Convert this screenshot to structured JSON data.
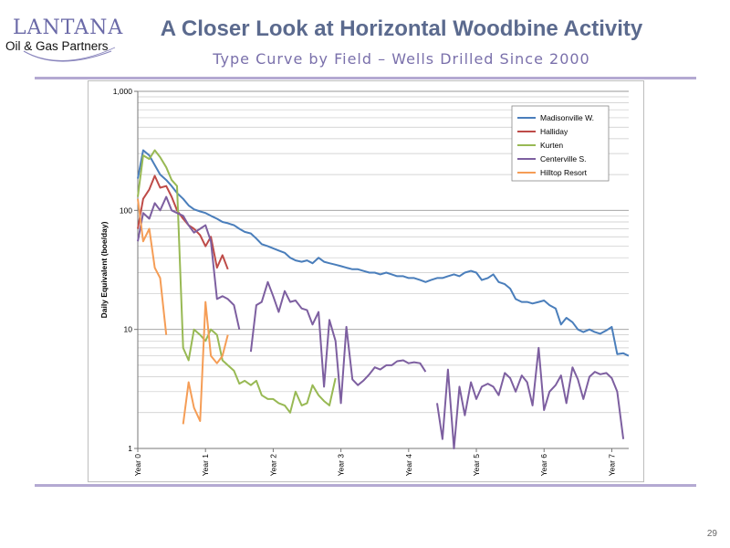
{
  "logo": {
    "name": "LANTANA",
    "tagline": "Oil & Gas Partners"
  },
  "title": "A Closer Look at Horizontal Woodbine Activity",
  "subtitle": "Type Curve by Field – Wells Drilled Since 2000",
  "page_number": "29",
  "colors": {
    "title": "#5b6a8e",
    "subtitle": "#7a70ab",
    "rule": "#b4a9d2"
  },
  "chart_data": {
    "type": "line",
    "title": "",
    "xlabel": "",
    "ylabel": "Daily Equivalent (boe/day)",
    "y_scale": "log",
    "ylim": [
      1,
      1000
    ],
    "xlim": [
      0,
      7.25
    ],
    "y_ticks": [
      {
        "value": 1,
        "label": "1"
      },
      {
        "value": 10,
        "label": "10"
      },
      {
        "value": 100,
        "label": "100"
      },
      {
        "value": 1000,
        "label": "1,000"
      }
    ],
    "x_ticks": [
      {
        "value": 0,
        "label": "Year 0"
      },
      {
        "value": 1,
        "label": "Year 1"
      },
      {
        "value": 2,
        "label": "Year 2"
      },
      {
        "value": 3,
        "label": "Year 3"
      },
      {
        "value": 4,
        "label": "Year 4"
      },
      {
        "value": 5,
        "label": "Year 5"
      },
      {
        "value": 6,
        "label": "Year 6"
      },
      {
        "value": 7,
        "label": "Year 7"
      }
    ],
    "grid": "horizontal",
    "legend_position": "top-right",
    "series": [
      {
        "name": "Madisonville W.",
        "color": "#4a7ebb",
        "points": [
          [
            0,
            185
          ],
          [
            0.08,
            320
          ],
          [
            0.17,
            290
          ],
          [
            0.25,
            240
          ],
          [
            0.33,
            200
          ],
          [
            0.42,
            180
          ],
          [
            0.5,
            160
          ],
          [
            0.58,
            140
          ],
          [
            0.67,
            125
          ],
          [
            0.75,
            110
          ],
          [
            0.83,
            102
          ],
          [
            0.92,
            98
          ],
          [
            1.0,
            95
          ],
          [
            1.08,
            90
          ],
          [
            1.17,
            85
          ],
          [
            1.25,
            80
          ],
          [
            1.33,
            78
          ],
          [
            1.42,
            75
          ],
          [
            1.5,
            70
          ],
          [
            1.58,
            66
          ],
          [
            1.67,
            64
          ],
          [
            1.75,
            58
          ],
          [
            1.83,
            52
          ],
          [
            1.92,
            50
          ],
          [
            2.0,
            48
          ],
          [
            2.08,
            46
          ],
          [
            2.17,
            44
          ],
          [
            2.25,
            40
          ],
          [
            2.33,
            38
          ],
          [
            2.42,
            37
          ],
          [
            2.5,
            38
          ],
          [
            2.58,
            36
          ],
          [
            2.67,
            40
          ],
          [
            2.75,
            37
          ],
          [
            2.83,
            36
          ],
          [
            2.92,
            35
          ],
          [
            3.0,
            34
          ],
          [
            3.08,
            33
          ],
          [
            3.17,
            32
          ],
          [
            3.25,
            32
          ],
          [
            3.33,
            31
          ],
          [
            3.42,
            30
          ],
          [
            3.5,
            30
          ],
          [
            3.58,
            29
          ],
          [
            3.67,
            30
          ],
          [
            3.75,
            29
          ],
          [
            3.83,
            28
          ],
          [
            3.92,
            28
          ],
          [
            4.0,
            27
          ],
          [
            4.08,
            27
          ],
          [
            4.17,
            26
          ],
          [
            4.25,
            25
          ],
          [
            4.33,
            26
          ],
          [
            4.42,
            27
          ],
          [
            4.5,
            27
          ],
          [
            4.58,
            28
          ],
          [
            4.67,
            29
          ],
          [
            4.75,
            28
          ],
          [
            4.83,
            30
          ],
          [
            4.92,
            31
          ],
          [
            5.0,
            30
          ],
          [
            5.08,
            26
          ],
          [
            5.17,
            27
          ],
          [
            5.25,
            29
          ],
          [
            5.33,
            25
          ],
          [
            5.42,
            24
          ],
          [
            5.5,
            22
          ],
          [
            5.58,
            18
          ],
          [
            5.67,
            17
          ],
          [
            5.75,
            17
          ],
          [
            5.83,
            16.5
          ],
          [
            5.92,
            17
          ],
          [
            6.0,
            17.5
          ],
          [
            6.08,
            16
          ],
          [
            6.17,
            15
          ],
          [
            6.25,
            11
          ],
          [
            6.33,
            12.5
          ],
          [
            6.42,
            11.5
          ],
          [
            6.5,
            10
          ],
          [
            6.58,
            9.5
          ],
          [
            6.67,
            10
          ],
          [
            6.75,
            9.5
          ],
          [
            6.83,
            9.2
          ],
          [
            6.92,
            9.8
          ],
          [
            7.0,
            10.5
          ],
          [
            7.08,
            6.2
          ],
          [
            7.17,
            6.3
          ],
          [
            7.25,
            6.0
          ]
        ]
      },
      {
        "name": "Halliday",
        "color": "#be4b48",
        "points": [
          [
            0,
            70
          ],
          [
            0.08,
            125
          ],
          [
            0.17,
            150
          ],
          [
            0.25,
            195
          ],
          [
            0.33,
            155
          ],
          [
            0.42,
            160
          ],
          [
            0.5,
            130
          ],
          [
            0.58,
            100
          ],
          [
            0.67,
            85
          ],
          [
            0.75,
            75
          ],
          [
            0.83,
            70
          ],
          [
            0.92,
            62
          ],
          [
            1.0,
            50
          ],
          [
            1.08,
            60
          ],
          [
            1.17,
            33
          ],
          [
            1.25,
            42
          ],
          [
            1.33,
            32
          ]
        ]
      },
      {
        "name": "Kurten",
        "color": "#98b954",
        "points": [
          [
            0,
            130
          ],
          [
            0.08,
            290
          ],
          [
            0.17,
            270
          ],
          [
            0.25,
            320
          ],
          [
            0.33,
            280
          ],
          [
            0.42,
            230
          ],
          [
            0.5,
            180
          ],
          [
            0.58,
            160
          ],
          [
            0.67,
            7
          ],
          [
            0.75,
            5.5
          ],
          [
            0.83,
            10
          ],
          [
            0.92,
            9
          ],
          [
            1.0,
            8
          ],
          [
            1.08,
            10
          ],
          [
            1.17,
            9
          ],
          [
            1.25,
            5.5
          ],
          [
            1.33,
            5
          ],
          [
            1.42,
            4.5
          ],
          [
            1.5,
            3.5
          ],
          [
            1.58,
            3.7
          ],
          [
            1.67,
            3.4
          ],
          [
            1.75,
            3.7
          ],
          [
            1.83,
            2.8
          ],
          [
            1.92,
            2.6
          ],
          [
            2.0,
            2.6
          ],
          [
            2.08,
            2.4
          ],
          [
            2.17,
            2.3
          ],
          [
            2.25,
            2.0
          ],
          [
            2.33,
            3.0
          ],
          [
            2.42,
            2.3
          ],
          [
            2.5,
            2.4
          ],
          [
            2.58,
            3.4
          ],
          [
            2.67,
            2.8
          ],
          [
            2.75,
            2.5
          ],
          [
            2.83,
            2.3
          ],
          [
            2.92,
            3.9
          ]
        ]
      },
      {
        "name": "Centerville S.",
        "color": "#7d5fa0",
        "points": [
          [
            0,
            55
          ],
          [
            0.08,
            95
          ],
          [
            0.17,
            85
          ],
          [
            0.25,
            115
          ],
          [
            0.33,
            100
          ],
          [
            0.42,
            130
          ],
          [
            0.5,
            100
          ],
          [
            0.58,
            95
          ],
          [
            0.67,
            90
          ],
          [
            0.75,
            75
          ],
          [
            0.83,
            65
          ],
          [
            0.92,
            70
          ],
          [
            1.0,
            75
          ],
          [
            1.08,
            55
          ],
          [
            1.17,
            18
          ],
          [
            1.25,
            19
          ],
          [
            1.33,
            18
          ],
          [
            1.42,
            16
          ],
          [
            1.5,
            10
          ],
          null,
          [
            1.67,
            6.5
          ],
          [
            1.75,
            16
          ],
          [
            1.83,
            17
          ],
          [
            1.92,
            25
          ],
          [
            2.0,
            19
          ],
          [
            2.08,
            14
          ],
          [
            2.17,
            21
          ],
          [
            2.25,
            17
          ],
          [
            2.33,
            17.5
          ],
          [
            2.42,
            15
          ],
          [
            2.5,
            14.5
          ],
          [
            2.58,
            11
          ],
          [
            2.67,
            14
          ],
          [
            2.75,
            3.3
          ],
          [
            2.83,
            12
          ],
          [
            2.92,
            8
          ],
          [
            3.0,
            2.4
          ],
          [
            3.08,
            10.5
          ],
          [
            3.17,
            3.8
          ],
          [
            3.25,
            3.4
          ],
          [
            3.33,
            3.7
          ],
          [
            3.42,
            4.2
          ],
          [
            3.5,
            4.8
          ],
          [
            3.58,
            4.6
          ],
          [
            3.67,
            5.0
          ],
          [
            3.75,
            5.0
          ],
          [
            3.83,
            5.4
          ],
          [
            3.92,
            5.5
          ],
          [
            4.0,
            5.2
          ],
          [
            4.08,
            5.3
          ],
          [
            4.17,
            5.2
          ],
          [
            4.25,
            4.4
          ],
          null,
          [
            4.42,
            2.4
          ],
          [
            4.5,
            1.2
          ],
          [
            4.58,
            4.6
          ],
          [
            4.67,
            1.0
          ],
          [
            4.75,
            3.3
          ],
          [
            4.83,
            1.9
          ],
          [
            4.92,
            3.6
          ],
          [
            5.0,
            2.6
          ],
          [
            5.08,
            3.3
          ],
          [
            5.17,
            3.5
          ],
          [
            5.25,
            3.3
          ],
          [
            5.33,
            2.8
          ],
          [
            5.42,
            4.3
          ],
          [
            5.5,
            3.9
          ],
          [
            5.58,
            3.0
          ],
          [
            5.67,
            4.1
          ],
          [
            5.75,
            3.6
          ],
          [
            5.83,
            2.3
          ],
          [
            5.92,
            7.0
          ],
          [
            6.0,
            2.1
          ],
          [
            6.08,
            3.0
          ],
          [
            6.17,
            3.4
          ],
          [
            6.25,
            4.1
          ],
          [
            6.33,
            2.4
          ],
          [
            6.42,
            4.8
          ],
          [
            6.5,
            3.8
          ],
          [
            6.58,
            2.6
          ],
          [
            6.67,
            4.0
          ],
          [
            6.75,
            4.4
          ],
          [
            6.83,
            4.2
          ],
          [
            6.92,
            4.3
          ],
          [
            7.0,
            3.9
          ],
          [
            7.08,
            3.0
          ],
          [
            7.17,
            1.2
          ]
        ]
      },
      {
        "name": "Hilltop Resort",
        "color": "#f59d56",
        "points": [
          [
            0,
            125
          ],
          [
            0.08,
            55
          ],
          [
            0.17,
            70
          ],
          [
            0.25,
            33
          ],
          [
            0.33,
            27
          ],
          [
            0.42,
            9
          ],
          null,
          [
            0.67,
            1.6
          ],
          [
            0.75,
            3.6
          ],
          [
            0.83,
            2.2
          ],
          [
            0.92,
            1.7
          ],
          [
            1.0,
            17
          ],
          [
            1.08,
            6
          ],
          [
            1.17,
            5.2
          ],
          [
            1.25,
            6
          ],
          [
            1.33,
            9
          ]
        ]
      }
    ]
  }
}
